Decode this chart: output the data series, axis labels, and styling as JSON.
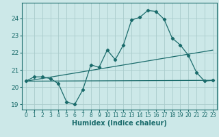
{
  "title": "",
  "xlabel": "Humidex (Indice chaleur)",
  "ylabel": "",
  "xlim": [
    -0.5,
    23.5
  ],
  "ylim": [
    18.7,
    24.9
  ],
  "xticks": [
    0,
    1,
    2,
    3,
    4,
    5,
    6,
    7,
    8,
    9,
    10,
    11,
    12,
    13,
    14,
    15,
    16,
    17,
    18,
    19,
    20,
    21,
    22,
    23
  ],
  "yticks": [
    19,
    20,
    21,
    22,
    23,
    24
  ],
  "bg_color": "#cce8e8",
  "grid_color": "#aacccc",
  "line_color": "#1a6b6b",
  "line1_x": [
    0,
    1,
    2,
    3,
    4,
    5,
    6,
    7,
    8,
    9,
    10,
    11,
    12,
    13,
    14,
    15,
    16,
    17,
    18,
    19,
    20,
    21,
    22,
    23
  ],
  "line1_y": [
    20.35,
    20.6,
    20.6,
    20.5,
    20.2,
    19.15,
    19.0,
    19.85,
    21.3,
    21.15,
    22.15,
    21.6,
    22.45,
    23.9,
    24.05,
    24.45,
    24.4,
    23.95,
    22.85,
    22.45,
    21.85,
    20.85,
    20.35,
    20.4
  ],
  "line2_x": [
    0,
    23
  ],
  "line2_y": [
    20.35,
    20.4
  ],
  "line3_x": [
    0,
    23
  ],
  "line3_y": [
    20.35,
    22.15
  ]
}
